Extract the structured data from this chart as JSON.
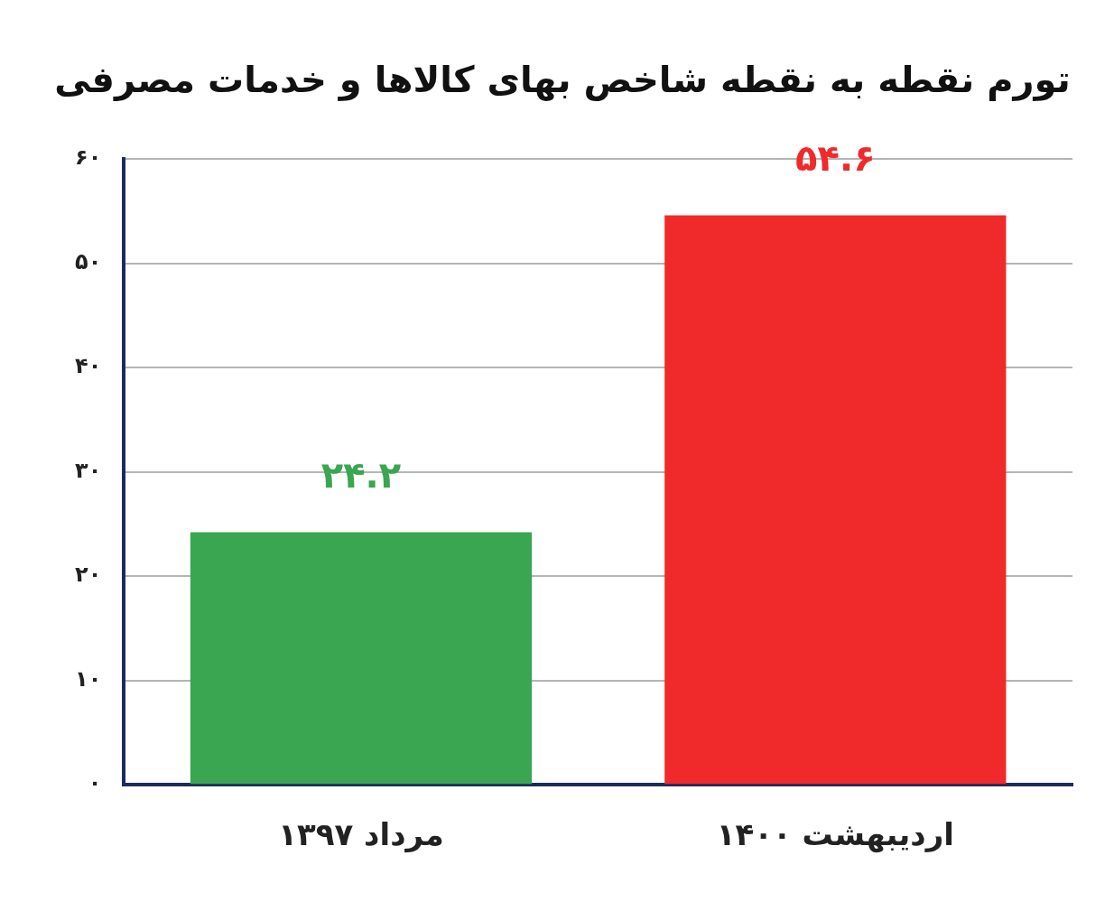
{
  "chart_data": {
    "type": "bar",
    "title": "تورم نقطه به نقطه شاخص بهای کالاها و خدمات مصرفی",
    "categories": [
      "مرداد ۱۳۹۷",
      "اردیبهشت ۱۴۰۰"
    ],
    "values": [
      24.2,
      54.6
    ],
    "colors": [
      "#3aa651",
      "#f02a2a"
    ],
    "value_labels": [
      "۲۴.۲",
      "۵۴.۶"
    ],
    "ylim": [
      0,
      60
    ],
    "yticks": [
      {
        "value": 0,
        "label": "۰"
      },
      {
        "value": 10,
        "label": "۱۰"
      },
      {
        "value": 20,
        "label": "۲۰"
      },
      {
        "value": 30,
        "label": "۳۰"
      },
      {
        "value": 40,
        "label": "۴۰"
      },
      {
        "value": 50,
        "label": "۵۰"
      },
      {
        "value": 60,
        "label": "۶۰"
      }
    ],
    "grid": "y",
    "legend": false
  }
}
